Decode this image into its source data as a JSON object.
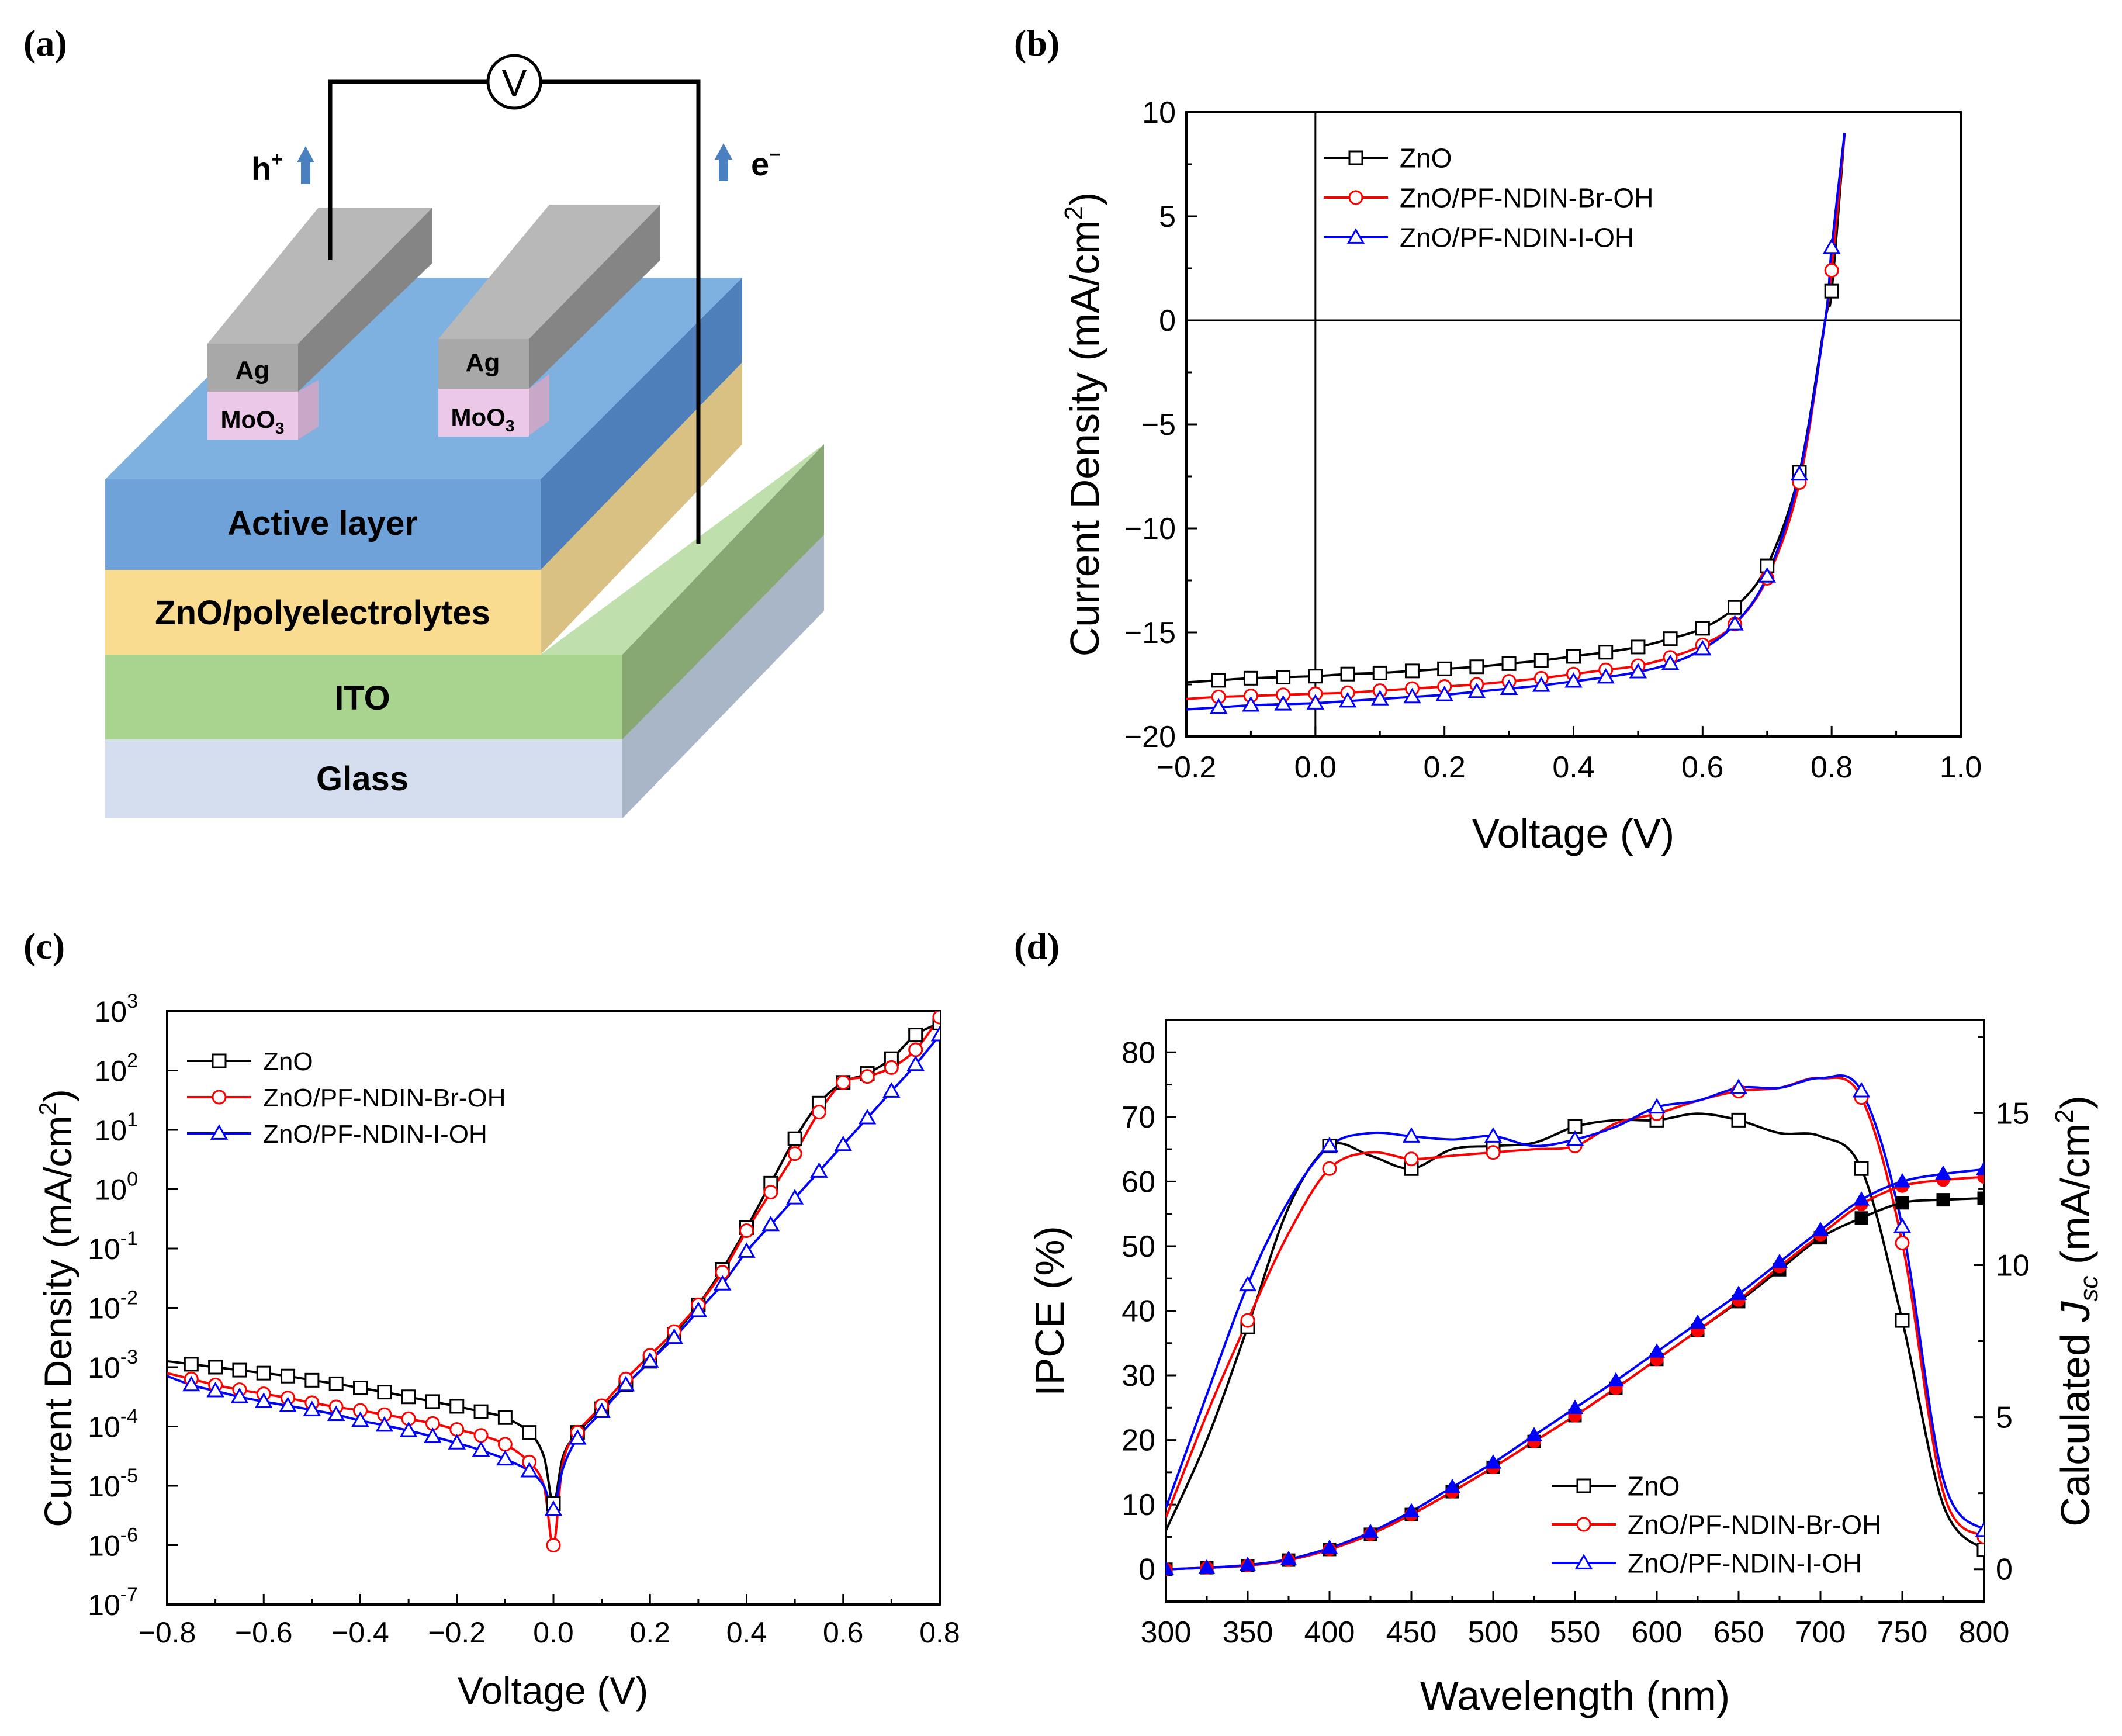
{
  "figure": {
    "panel_labels": [
      "(a)",
      "(b)",
      "(c)",
      "(d)"
    ],
    "colors": {
      "zno": "#000000",
      "br": "#ff0000",
      "iodine": "#0000ff",
      "arrow": "#4a7fc0"
    }
  },
  "schematic": {
    "voltmeter": "V",
    "hole_label": "h",
    "hole_sup": "+",
    "electron_label": "e",
    "electron_sup": "−",
    "electrode_metal": "Ag",
    "oxide_main": "MoO",
    "oxide_sub": "3",
    "layers": [
      "Active layer",
      "ZnO/polyelectrolytes",
      "ITO",
      "Glass"
    ],
    "layer_colors": [
      "#6fa2d8",
      "#f9dc8f",
      "#a8d490",
      "#d5deee"
    ]
  },
  "chart_data": [
    {
      "panel": "(b)",
      "type": "line",
      "xlabel": "Voltage (V)",
      "ylabel_main": "Current Density (mA/cm",
      "ylabel_sup": "2",
      "ylabel_end": ")",
      "xlim": [
        -0.2,
        1.0
      ],
      "ylim": [
        -20,
        10
      ],
      "xticks": [
        -0.2,
        0.0,
        0.2,
        0.4,
        0.6,
        0.8,
        1.0
      ],
      "xtick_labels": [
        "−0.2",
        "0.0",
        "0.2",
        "0.4",
        "0.6",
        "0.8",
        "1.0"
      ],
      "yticks": [
        10,
        5,
        0,
        -5,
        -10,
        -15,
        -20
      ],
      "ytick_labels": [
        "10",
        "5",
        "0",
        "−5",
        "−10",
        "−15",
        "−20"
      ],
      "legend": [
        "ZnO",
        "ZnO/PF-NDIN-Br-OH",
        "ZnO/PF-NDIN-I-OH"
      ],
      "series": [
        {
          "name": "ZnO",
          "marker": "square",
          "x": [
            -0.2,
            -0.15,
            -0.1,
            -0.05,
            0.0,
            0.05,
            0.1,
            0.15,
            0.2,
            0.25,
            0.3,
            0.35,
            0.4,
            0.45,
            0.5,
            0.55,
            0.6,
            0.65,
            0.7,
            0.75,
            0.79,
            0.8,
            0.82
          ],
          "y": [
            -17.4,
            -17.3,
            -17.2,
            -17.15,
            -17.1,
            -17.0,
            -16.95,
            -16.85,
            -16.75,
            -16.65,
            -16.5,
            -16.35,
            -16.15,
            -15.95,
            -15.7,
            -15.3,
            -14.8,
            -13.8,
            -11.8,
            -7.3,
            0,
            1.4,
            9
          ]
        },
        {
          "name": "ZnO/PF-NDIN-Br-OH",
          "marker": "circle",
          "x": [
            -0.2,
            -0.15,
            -0.1,
            -0.05,
            0.0,
            0.05,
            0.1,
            0.15,
            0.2,
            0.25,
            0.3,
            0.35,
            0.4,
            0.45,
            0.5,
            0.55,
            0.6,
            0.65,
            0.7,
            0.75,
            0.79,
            0.8,
            0.82
          ],
          "y": [
            -18.2,
            -18.1,
            -18.05,
            -18.0,
            -17.95,
            -17.9,
            -17.8,
            -17.7,
            -17.6,
            -17.5,
            -17.35,
            -17.2,
            -17.0,
            -16.8,
            -16.6,
            -16.2,
            -15.6,
            -14.6,
            -12.4,
            -7.8,
            0,
            2.4,
            9
          ]
        },
        {
          "name": "ZnO/PF-NDIN-I-OH",
          "marker": "triangle",
          "x": [
            -0.2,
            -0.15,
            -0.1,
            -0.05,
            0.0,
            0.05,
            0.1,
            0.15,
            0.2,
            0.25,
            0.3,
            0.35,
            0.4,
            0.45,
            0.5,
            0.55,
            0.6,
            0.65,
            0.7,
            0.75,
            0.79,
            0.8,
            0.82
          ],
          "y": [
            -18.7,
            -18.6,
            -18.5,
            -18.45,
            -18.4,
            -18.3,
            -18.2,
            -18.1,
            -18.0,
            -17.85,
            -17.7,
            -17.55,
            -17.35,
            -17.15,
            -16.9,
            -16.5,
            -15.8,
            -14.6,
            -12.3,
            -7.4,
            0,
            3.5,
            9
          ]
        }
      ]
    },
    {
      "panel": "(c)",
      "type": "line",
      "yscale": "log",
      "xlabel": "Voltage (V)",
      "ylabel_main": "Current Density (mA/cm",
      "ylabel_sup": "2",
      "ylabel_end": ")",
      "xlim": [
        -0.8,
        0.8
      ],
      "ylim_exp": [
        -7,
        3
      ],
      "xticks": [
        -0.8,
        -0.6,
        -0.4,
        -0.2,
        0.0,
        0.2,
        0.4,
        0.6,
        0.8
      ],
      "xtick_labels": [
        "−0.8",
        "−0.6",
        "−0.4",
        "−0.2",
        "0.0",
        "0.2",
        "0.4",
        "0.6",
        "0.8"
      ],
      "ytick_exps": [
        3,
        2,
        1,
        0,
        -1,
        -2,
        -3,
        -4,
        -5,
        -6,
        -7
      ],
      "ytick_labels": [
        "3",
        "2",
        "1",
        "0",
        "-1",
        "-2",
        "-3",
        "-4",
        "-5",
        "-6",
        "-7"
      ],
      "ytick_base": "10",
      "legend": [
        "ZnO",
        "ZnO/PF-NDIN-Br-OH",
        "ZnO/PF-NDIN-I-OH"
      ],
      "series": [
        {
          "name": "ZnO",
          "marker": "square",
          "x": [
            -0.8,
            -0.75,
            -0.7,
            -0.65,
            -0.6,
            -0.55,
            -0.5,
            -0.45,
            -0.4,
            -0.35,
            -0.3,
            -0.25,
            -0.2,
            -0.15,
            -0.1,
            -0.05,
            -0.02,
            0.0,
            0.02,
            0.05,
            0.1,
            0.15,
            0.2,
            0.25,
            0.3,
            0.35,
            0.4,
            0.45,
            0.5,
            0.55,
            0.6,
            0.65,
            0.7,
            0.75,
            0.8
          ],
          "logy": [
            -2.9,
            -2.95,
            -3.0,
            -3.05,
            -3.1,
            -3.15,
            -3.22,
            -3.28,
            -3.35,
            -3.42,
            -3.5,
            -3.58,
            -3.66,
            -3.75,
            -3.85,
            -4.1,
            -4.5,
            -5.3,
            -4.5,
            -4.1,
            -3.7,
            -3.3,
            -2.9,
            -2.45,
            -1.95,
            -1.35,
            -0.65,
            0.1,
            0.85,
            1.45,
            1.8,
            1.95,
            2.2,
            2.6,
            2.8
          ]
        },
        {
          "name": "ZnO/PF-NDIN-Br-OH",
          "marker": "circle",
          "x": [
            -0.8,
            -0.75,
            -0.7,
            -0.65,
            -0.6,
            -0.55,
            -0.5,
            -0.45,
            -0.4,
            -0.35,
            -0.3,
            -0.25,
            -0.2,
            -0.15,
            -0.1,
            -0.05,
            -0.02,
            0.0,
            0.02,
            0.05,
            0.1,
            0.15,
            0.2,
            0.25,
            0.3,
            0.35,
            0.4,
            0.45,
            0.5,
            0.55,
            0.6,
            0.65,
            0.7,
            0.75,
            0.8
          ],
          "logy": [
            -3.1,
            -3.2,
            -3.3,
            -3.38,
            -3.45,
            -3.52,
            -3.6,
            -3.67,
            -3.73,
            -3.8,
            -3.87,
            -3.95,
            -4.05,
            -4.15,
            -4.3,
            -4.6,
            -5.0,
            -6.0,
            -4.6,
            -4.1,
            -3.65,
            -3.2,
            -2.8,
            -2.4,
            -1.95,
            -1.4,
            -0.7,
            -0.05,
            0.6,
            1.3,
            1.8,
            1.9,
            2.05,
            2.35,
            2.9
          ]
        },
        {
          "name": "ZnO/PF-NDIN-I-OH",
          "marker": "triangle",
          "x": [
            -0.8,
            -0.75,
            -0.7,
            -0.65,
            -0.6,
            -0.55,
            -0.5,
            -0.45,
            -0.4,
            -0.35,
            -0.3,
            -0.25,
            -0.2,
            -0.15,
            -0.1,
            -0.05,
            -0.02,
            0.0,
            0.02,
            0.05,
            0.1,
            0.15,
            0.2,
            0.25,
            0.3,
            0.35,
            0.4,
            0.45,
            0.5,
            0.55,
            0.6,
            0.65,
            0.7,
            0.75,
            0.8
          ],
          "logy": [
            -3.15,
            -3.3,
            -3.4,
            -3.5,
            -3.58,
            -3.65,
            -3.72,
            -3.8,
            -3.9,
            -3.98,
            -4.07,
            -4.17,
            -4.28,
            -4.4,
            -4.55,
            -4.75,
            -5.0,
            -5.4,
            -4.7,
            -4.2,
            -3.75,
            -3.3,
            -2.9,
            -2.5,
            -2.05,
            -1.6,
            -1.05,
            -0.6,
            -0.15,
            0.3,
            0.75,
            1.2,
            1.65,
            2.1,
            2.6
          ]
        }
      ]
    },
    {
      "panel": "(d)",
      "type": "line",
      "xlabel": "Wavelength (nm)",
      "ylabel": "IPCE (%)",
      "y2label_main": "Calculated ",
      "y2label_j": "J",
      "y2label_sub": "sc",
      "y2label_mid": " (mA/cm",
      "y2label_sup": "2",
      "y2label_end": ")",
      "xlim": [
        300,
        800
      ],
      "ylim": [
        -5,
        85
      ],
      "y2lim": [
        -1.0625,
        18.0625
      ],
      "xticks": [
        300,
        350,
        400,
        450,
        500,
        550,
        600,
        650,
        700,
        750,
        800
      ],
      "xtick_labels": [
        "300",
        "350",
        "400",
        "450",
        "500",
        "550",
        "600",
        "650",
        "700",
        "750",
        "800"
      ],
      "yticks": [
        0,
        10,
        20,
        30,
        40,
        50,
        60,
        70,
        80
      ],
      "ytick_labels": [
        "0",
        "10",
        "20",
        "30",
        "40",
        "50",
        "60",
        "70",
        "80"
      ],
      "y2ticks": [
        0,
        5,
        10,
        15
      ],
      "y2tick_labels": [
        "0",
        "5",
        "10",
        "15"
      ],
      "legend": [
        "ZnO",
        "ZnO/PF-NDIN-Br-OH",
        "ZnO/PF-NDIN-I-OH"
      ],
      "ipce_series": [
        {
          "name": "ZnO",
          "marker": "square",
          "x": [
            300,
            325,
            350,
            375,
            400,
            425,
            450,
            475,
            500,
            525,
            550,
            575,
            600,
            625,
            650,
            675,
            700,
            725,
            750,
            775,
            800
          ],
          "y": [
            6,
            20,
            37.5,
            56,
            65.5,
            64,
            62,
            65,
            65.5,
            66,
            68.5,
            69.5,
            69.5,
            70.5,
            69.5,
            67.5,
            67,
            62,
            38.5,
            10,
            3
          ]
        },
        {
          "name": "ZnO/PF-NDIN-Br-OH",
          "marker": "circle",
          "x": [
            300,
            325,
            350,
            375,
            400,
            425,
            450,
            475,
            500,
            525,
            550,
            575,
            600,
            625,
            650,
            675,
            700,
            725,
            750,
            775,
            800
          ],
          "y": [
            8,
            24,
            38.5,
            52,
            62,
            64.5,
            63.5,
            64,
            64.5,
            65,
            65.5,
            69,
            70.5,
            72.5,
            74,
            74.5,
            76,
            73,
            50.5,
            12,
            5
          ]
        },
        {
          "name": "ZnO/PF-NDIN-I-OH",
          "marker": "triangle",
          "x": [
            300,
            325,
            350,
            375,
            400,
            425,
            450,
            475,
            500,
            525,
            550,
            575,
            600,
            625,
            650,
            675,
            700,
            725,
            750,
            775,
            800
          ],
          "y": [
            9.5,
            27,
            44,
            57,
            65.5,
            67.5,
            67,
            66.5,
            67,
            65.5,
            66.5,
            68.5,
            71.5,
            72.5,
            74.5,
            74.5,
            76,
            74,
            53,
            14,
            6
          ]
        }
      ],
      "jsc_series": [
        {
          "name": "ZnO",
          "marker": "square-filled",
          "x": [
            300,
            325,
            350,
            375,
            400,
            425,
            450,
            475,
            500,
            525,
            550,
            575,
            600,
            625,
            650,
            675,
            700,
            725,
            750,
            775,
            800
          ],
          "y": [
            0,
            0.05,
            0.12,
            0.3,
            0.65,
            1.15,
            1.8,
            2.55,
            3.35,
            4.2,
            5.05,
            5.95,
            6.9,
            7.85,
            8.8,
            9.85,
            10.9,
            11.55,
            12.05,
            12.15,
            12.2
          ]
        },
        {
          "name": "ZnO/PF-NDIN-Br-OH",
          "marker": "circle-filled",
          "x": [
            300,
            325,
            350,
            375,
            400,
            425,
            450,
            475,
            500,
            525,
            550,
            575,
            600,
            625,
            650,
            675,
            700,
            725,
            750,
            775,
            800
          ],
          "y": [
            0,
            0.05,
            0.12,
            0.3,
            0.65,
            1.15,
            1.8,
            2.55,
            3.35,
            4.2,
            5.05,
            5.95,
            6.9,
            7.85,
            8.85,
            9.95,
            11.0,
            12.0,
            12.6,
            12.8,
            12.9
          ]
        },
        {
          "name": "ZnO/PF-NDIN-I-OH",
          "marker": "triangle-filled",
          "x": [
            300,
            325,
            350,
            375,
            400,
            425,
            450,
            475,
            500,
            525,
            550,
            575,
            600,
            625,
            650,
            675,
            700,
            725,
            750,
            775,
            800
          ],
          "y": [
            0,
            0.05,
            0.14,
            0.33,
            0.7,
            1.22,
            1.9,
            2.7,
            3.5,
            4.4,
            5.3,
            6.2,
            7.15,
            8.1,
            9.05,
            10.1,
            11.15,
            12.15,
            12.75,
            13.0,
            13.15
          ]
        }
      ]
    }
  ]
}
